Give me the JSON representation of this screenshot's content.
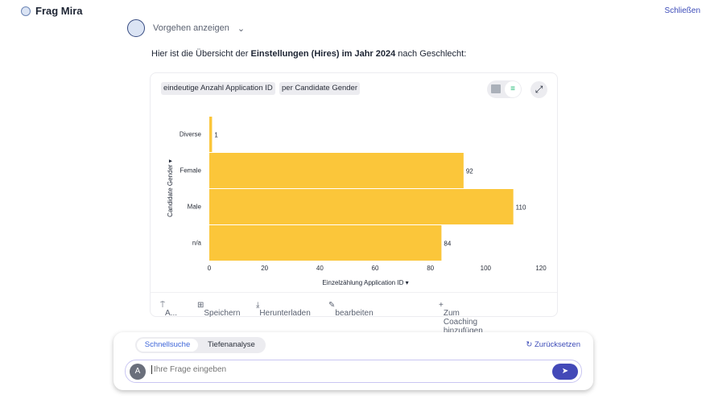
{
  "header": {
    "title": "Frag Mira",
    "close": "Schließen"
  },
  "steps": {
    "label": "Vorgehen anzeigen"
  },
  "intro": {
    "prefix": "Hier ist die Übersicht der ",
    "bold": "Einstellungen (Hires) im Jahr 2024",
    "suffix": " nach Geschlecht:"
  },
  "card": {
    "chips": [
      "eindeutige Anzahl Application ID",
      "per Candidate Gender"
    ],
    "footer": {
      "pin": "A...",
      "save": "Speichern",
      "download": "Herunterladen",
      "edit": "bearbeiten",
      "coaching": "Zum Coaching hinzufügen"
    }
  },
  "chart_data": {
    "type": "bar",
    "orientation": "horizontal",
    "categories": [
      "Diverse",
      "Female",
      "Male",
      "n/a"
    ],
    "values": [
      1,
      92,
      110,
      84
    ],
    "xlabel": "Einzelzählung Application ID",
    "ylabel": "Candidate Gender",
    "xlim": [
      0,
      120
    ],
    "xticks": [
      0,
      20,
      40,
      60,
      80,
      100,
      120
    ],
    "color": "#FBC63A"
  },
  "chat": {
    "modes": [
      "Schnellsuche",
      "Tiefenanalyse"
    ],
    "reset": "Zurücksetzen",
    "avatar": "A",
    "placeholder": "Ihre Frage eingeben"
  }
}
